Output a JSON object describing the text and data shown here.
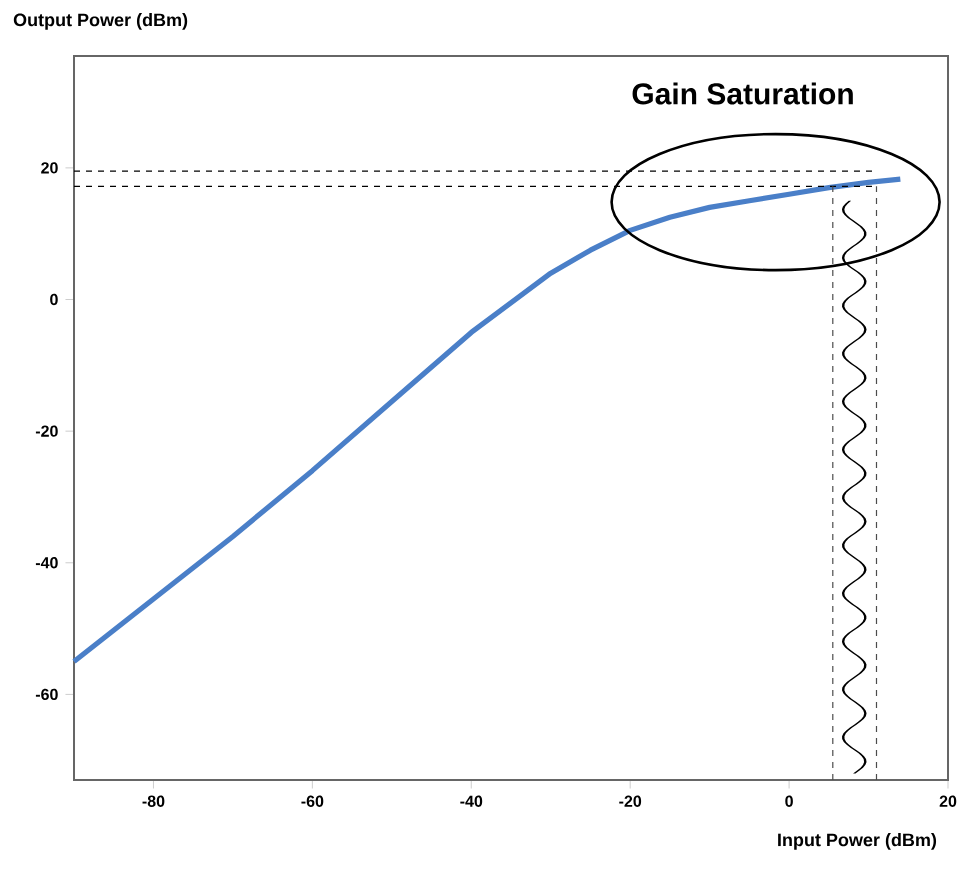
{
  "chart_data": {
    "type": "line",
    "xlabel": "Input Power (dBm)",
    "ylabel": "Output Power (dBm)",
    "annotations": [
      "Gain Saturation"
    ],
    "x": [
      -90,
      -80,
      -70,
      -60,
      -50,
      -40,
      -30,
      -25,
      -20,
      -15,
      -10,
      -5,
      0,
      5,
      10,
      14
    ],
    "series": [
      {
        "color": "#4a7fc8",
        "values": [
          -55,
          -45.5,
          -36,
          -26,
          -15.5,
          -5,
          4,
          7.5,
          10.5,
          12.5,
          14,
          15,
          16,
          17,
          17.8,
          18.3
        ]
      }
    ],
    "xlim": [
      -90,
      20
    ],
    "ylim": [
      -73,
      37
    ],
    "xticks": [
      -80,
      -60,
      -40,
      -20,
      0,
      20
    ],
    "yticks": [
      -60,
      -40,
      -20,
      0,
      20
    ],
    "ref_lines": [
      {
        "axis": "y",
        "value": 19.5,
        "line_style": "dashed"
      },
      {
        "axis": "y",
        "value": 17.2,
        "line_style": "dashed"
      },
      {
        "axis": "x",
        "value": 5.5,
        "line_style": "dashed"
      },
      {
        "axis": "x",
        "value": 11,
        "line_style": "dashed"
      }
    ],
    "grid": false,
    "marker": "none",
    "line_style": "solid"
  }
}
